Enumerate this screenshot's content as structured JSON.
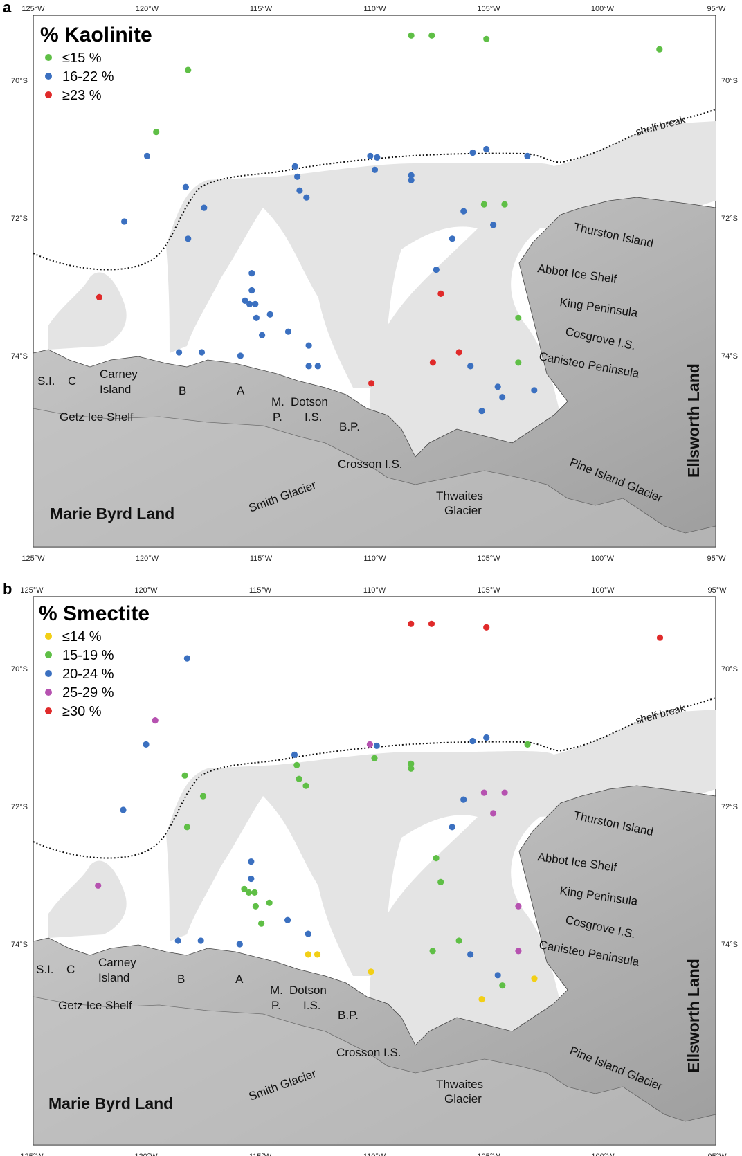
{
  "lon_ticks": [
    "125°W",
    "120°W",
    "115°W",
    "110°W",
    "105°W",
    "100°W",
    "95°W"
  ],
  "lon_values": [
    -125,
    -120,
    -115,
    -110,
    -105,
    -100,
    -95
  ],
  "lat_ticks": [
    "70°S",
    "72°S",
    "74°S"
  ],
  "lat_values": [
    -70,
    -72,
    -74
  ],
  "place_labels": {
    "shelf_break": "shelf break",
    "thurston": "Thurston Island",
    "abbot": "Abbot Ice Shelf",
    "king": "King Peninsula",
    "cosgrove": "Cosgrove I.S.",
    "canisteo": "Canisteo Peninsula",
    "ellsworth": "Ellsworth Land",
    "pine_island": "Pine Island Glacier",
    "thwaites_1": "Thwaites",
    "thwaites_2": "Glacier",
    "crosson": "Crosson I.S.",
    "smith": "Smith Glacier",
    "marie_byrd": "Marie Byrd Land",
    "getz": "Getz Ice Shelf",
    "si": "S.I.",
    "c": "C",
    "carney_1": "Carney",
    "carney_2": "Island",
    "b": "B",
    "a": "A",
    "m": "M.",
    "p": "P.",
    "dotson_1": "Dotson",
    "dotson_2": "I.S.",
    "bp": "B.P."
  },
  "colors": {
    "green": "#5fbf46",
    "blue": "#3b70c0",
    "red": "#e02a2a",
    "yellow": "#f2cf16",
    "magenta": "#b652b0",
    "land": "#b3b3b3",
    "shelf": "#e4e4e4"
  },
  "panels": [
    {
      "letter": "a",
      "title": "% Kaolinite",
      "legend": [
        {
          "label": "≤15 %",
          "color": "green"
        },
        {
          "label": "16-22 %",
          "color": "blue"
        },
        {
          "label": "≥23 %",
          "color": "red"
        }
      ],
      "samples": [
        {
          "lon": -108.4,
          "lat": -69.35,
          "color": "green"
        },
        {
          "lon": -107.5,
          "lat": -69.35,
          "color": "green"
        },
        {
          "lon": -105.1,
          "lat": -69.4,
          "color": "green"
        },
        {
          "lon": -97.5,
          "lat": -69.55,
          "color": "green"
        },
        {
          "lon": -118.2,
          "lat": -69.85,
          "color": "green"
        },
        {
          "lon": -119.6,
          "lat": -70.75,
          "color": "green"
        },
        {
          "lon": -105.2,
          "lat": -71.8,
          "color": "green"
        },
        {
          "lon": -104.3,
          "lat": -71.8,
          "color": "green"
        },
        {
          "lon": -103.7,
          "lat": -73.45,
          "color": "green"
        },
        {
          "lon": -103.7,
          "lat": -74.1,
          "color": "green"
        },
        {
          "lon": -120.0,
          "lat": -71.1,
          "color": "blue"
        },
        {
          "lon": -118.3,
          "lat": -71.55,
          "color": "blue"
        },
        {
          "lon": -117.5,
          "lat": -71.85,
          "color": "blue"
        },
        {
          "lon": -121.0,
          "lat": -72.05,
          "color": "blue"
        },
        {
          "lon": -118.2,
          "lat": -72.3,
          "color": "blue"
        },
        {
          "lon": -113.5,
          "lat": -71.25,
          "color": "blue"
        },
        {
          "lon": -113.4,
          "lat": -71.4,
          "color": "blue"
        },
        {
          "lon": -113.3,
          "lat": -71.6,
          "color": "blue"
        },
        {
          "lon": -113.0,
          "lat": -71.7,
          "color": "blue"
        },
        {
          "lon": -110.2,
          "lat": -71.1,
          "color": "blue"
        },
        {
          "lon": -109.9,
          "lat": -71.12,
          "color": "blue"
        },
        {
          "lon": -110.0,
          "lat": -71.3,
          "color": "blue"
        },
        {
          "lon": -108.4,
          "lat": -71.38,
          "color": "blue"
        },
        {
          "lon": -108.4,
          "lat": -71.45,
          "color": "blue"
        },
        {
          "lon": -105.7,
          "lat": -71.05,
          "color": "blue"
        },
        {
          "lon": -105.1,
          "lat": -71.0,
          "color": "blue"
        },
        {
          "lon": -103.3,
          "lat": -71.1,
          "color": "blue"
        },
        {
          "lon": -106.1,
          "lat": -71.9,
          "color": "blue"
        },
        {
          "lon": -104.8,
          "lat": -72.1,
          "color": "blue"
        },
        {
          "lon": -106.6,
          "lat": -72.3,
          "color": "blue"
        },
        {
          "lon": -107.3,
          "lat": -72.75,
          "color": "blue"
        },
        {
          "lon": -115.4,
          "lat": -72.8,
          "color": "blue"
        },
        {
          "lon": -115.4,
          "lat": -73.05,
          "color": "blue"
        },
        {
          "lon": -115.7,
          "lat": -73.2,
          "color": "blue"
        },
        {
          "lon": -115.5,
          "lat": -73.25,
          "color": "blue"
        },
        {
          "lon": -115.25,
          "lat": -73.25,
          "color": "blue"
        },
        {
          "lon": -114.6,
          "lat": -73.4,
          "color": "blue"
        },
        {
          "lon": -115.2,
          "lat": -73.45,
          "color": "blue"
        },
        {
          "lon": -113.8,
          "lat": -73.65,
          "color": "blue"
        },
        {
          "lon": -114.95,
          "lat": -73.7,
          "color": "blue"
        },
        {
          "lon": -112.9,
          "lat": -73.85,
          "color": "blue"
        },
        {
          "lon": -118.6,
          "lat": -73.95,
          "color": "blue"
        },
        {
          "lon": -117.6,
          "lat": -73.95,
          "color": "blue"
        },
        {
          "lon": -115.9,
          "lat": -74.0,
          "color": "blue"
        },
        {
          "lon": -112.9,
          "lat": -74.15,
          "color": "blue"
        },
        {
          "lon": -112.5,
          "lat": -74.15,
          "color": "blue"
        },
        {
          "lon": -105.8,
          "lat": -74.15,
          "color": "blue"
        },
        {
          "lon": -104.6,
          "lat": -74.45,
          "color": "blue"
        },
        {
          "lon": -104.4,
          "lat": -74.6,
          "color": "blue"
        },
        {
          "lon": -103.0,
          "lat": -74.5,
          "color": "blue"
        },
        {
          "lon": -105.3,
          "lat": -74.8,
          "color": "blue"
        },
        {
          "lon": -122.1,
          "lat": -73.15,
          "color": "red"
        },
        {
          "lon": -107.1,
          "lat": -73.1,
          "color": "red"
        },
        {
          "lon": -107.45,
          "lat": -74.1,
          "color": "red"
        },
        {
          "lon": -106.3,
          "lat": -73.95,
          "color": "red"
        },
        {
          "lon": -110.15,
          "lat": -74.4,
          "color": "red"
        }
      ]
    },
    {
      "letter": "b",
      "title": "% Smectite",
      "legend": [
        {
          "label": "≤14 %",
          "color": "yellow"
        },
        {
          "label": "15-19 %",
          "color": "green"
        },
        {
          "label": "20-24 %",
          "color": "blue"
        },
        {
          "label": "25-29 %",
          "color": "magenta"
        },
        {
          "label": "≥30 %",
          "color": "red"
        }
      ],
      "samples": [
        {
          "lon": -108.4,
          "lat": -69.35,
          "color": "red"
        },
        {
          "lon": -107.5,
          "lat": -69.35,
          "color": "red"
        },
        {
          "lon": -105.1,
          "lat": -69.4,
          "color": "red"
        },
        {
          "lon": -97.5,
          "lat": -69.55,
          "color": "red"
        },
        {
          "lon": -118.2,
          "lat": -69.85,
          "color": "blue"
        },
        {
          "lon": -119.6,
          "lat": -70.75,
          "color": "magenta"
        },
        {
          "lon": -120.0,
          "lat": -71.1,
          "color": "blue"
        },
        {
          "lon": -121.0,
          "lat": -72.05,
          "color": "blue"
        },
        {
          "lon": -118.3,
          "lat": -71.55,
          "color": "green"
        },
        {
          "lon": -117.5,
          "lat": -71.85,
          "color": "green"
        },
        {
          "lon": -118.2,
          "lat": -72.3,
          "color": "green"
        },
        {
          "lon": -113.5,
          "lat": -71.25,
          "color": "blue"
        },
        {
          "lon": -113.4,
          "lat": -71.4,
          "color": "green"
        },
        {
          "lon": -113.3,
          "lat": -71.6,
          "color": "green"
        },
        {
          "lon": -113.0,
          "lat": -71.7,
          "color": "green"
        },
        {
          "lon": -110.2,
          "lat": -71.1,
          "color": "magenta"
        },
        {
          "lon": -109.9,
          "lat": -71.12,
          "color": "blue"
        },
        {
          "lon": -110.0,
          "lat": -71.3,
          "color": "green"
        },
        {
          "lon": -108.4,
          "lat": -71.38,
          "color": "green"
        },
        {
          "lon": -108.4,
          "lat": -71.45,
          "color": "green"
        },
        {
          "lon": -105.7,
          "lat": -71.05,
          "color": "blue"
        },
        {
          "lon": -105.1,
          "lat": -71.0,
          "color": "blue"
        },
        {
          "lon": -103.3,
          "lat": -71.1,
          "color": "green"
        },
        {
          "lon": -105.2,
          "lat": -71.8,
          "color": "magenta"
        },
        {
          "lon": -104.3,
          "lat": -71.8,
          "color": "magenta"
        },
        {
          "lon": -106.1,
          "lat": -71.9,
          "color": "blue"
        },
        {
          "lon": -104.8,
          "lat": -72.1,
          "color": "magenta"
        },
        {
          "lon": -106.6,
          "lat": -72.3,
          "color": "blue"
        },
        {
          "lon": -107.3,
          "lat": -72.75,
          "color": "green"
        },
        {
          "lon": -107.1,
          "lat": -73.1,
          "color": "green"
        },
        {
          "lon": -122.1,
          "lat": -73.15,
          "color": "magenta"
        },
        {
          "lon": -115.4,
          "lat": -72.8,
          "color": "blue"
        },
        {
          "lon": -115.4,
          "lat": -73.05,
          "color": "blue"
        },
        {
          "lon": -115.7,
          "lat": -73.2,
          "color": "green"
        },
        {
          "lon": -115.5,
          "lat": -73.25,
          "color": "green"
        },
        {
          "lon": -115.25,
          "lat": -73.25,
          "color": "green"
        },
        {
          "lon": -114.6,
          "lat": -73.4,
          "color": "green"
        },
        {
          "lon": -115.2,
          "lat": -73.45,
          "color": "green"
        },
        {
          "lon": -113.8,
          "lat": -73.65,
          "color": "blue"
        },
        {
          "lon": -114.95,
          "lat": -73.7,
          "color": "green"
        },
        {
          "lon": -112.9,
          "lat": -73.85,
          "color": "blue"
        },
        {
          "lon": -118.6,
          "lat": -73.95,
          "color": "blue"
        },
        {
          "lon": -117.6,
          "lat": -73.95,
          "color": "blue"
        },
        {
          "lon": -115.9,
          "lat": -74.0,
          "color": "blue"
        },
        {
          "lon": -112.9,
          "lat": -74.15,
          "color": "yellow"
        },
        {
          "lon": -112.5,
          "lat": -74.15,
          "color": "yellow"
        },
        {
          "lon": -110.15,
          "lat": -74.4,
          "color": "yellow"
        },
        {
          "lon": -107.45,
          "lat": -74.1,
          "color": "green"
        },
        {
          "lon": -106.3,
          "lat": -73.95,
          "color": "green"
        },
        {
          "lon": -105.8,
          "lat": -74.15,
          "color": "blue"
        },
        {
          "lon": -103.7,
          "lat": -73.45,
          "color": "magenta"
        },
        {
          "lon": -103.7,
          "lat": -74.1,
          "color": "magenta"
        },
        {
          "lon": -104.6,
          "lat": -74.45,
          "color": "blue"
        },
        {
          "lon": -104.4,
          "lat": -74.6,
          "color": "green"
        },
        {
          "lon": -103.0,
          "lat": -74.5,
          "color": "yellow"
        },
        {
          "lon": -105.3,
          "lat": -74.8,
          "color": "yellow"
        }
      ]
    }
  ]
}
